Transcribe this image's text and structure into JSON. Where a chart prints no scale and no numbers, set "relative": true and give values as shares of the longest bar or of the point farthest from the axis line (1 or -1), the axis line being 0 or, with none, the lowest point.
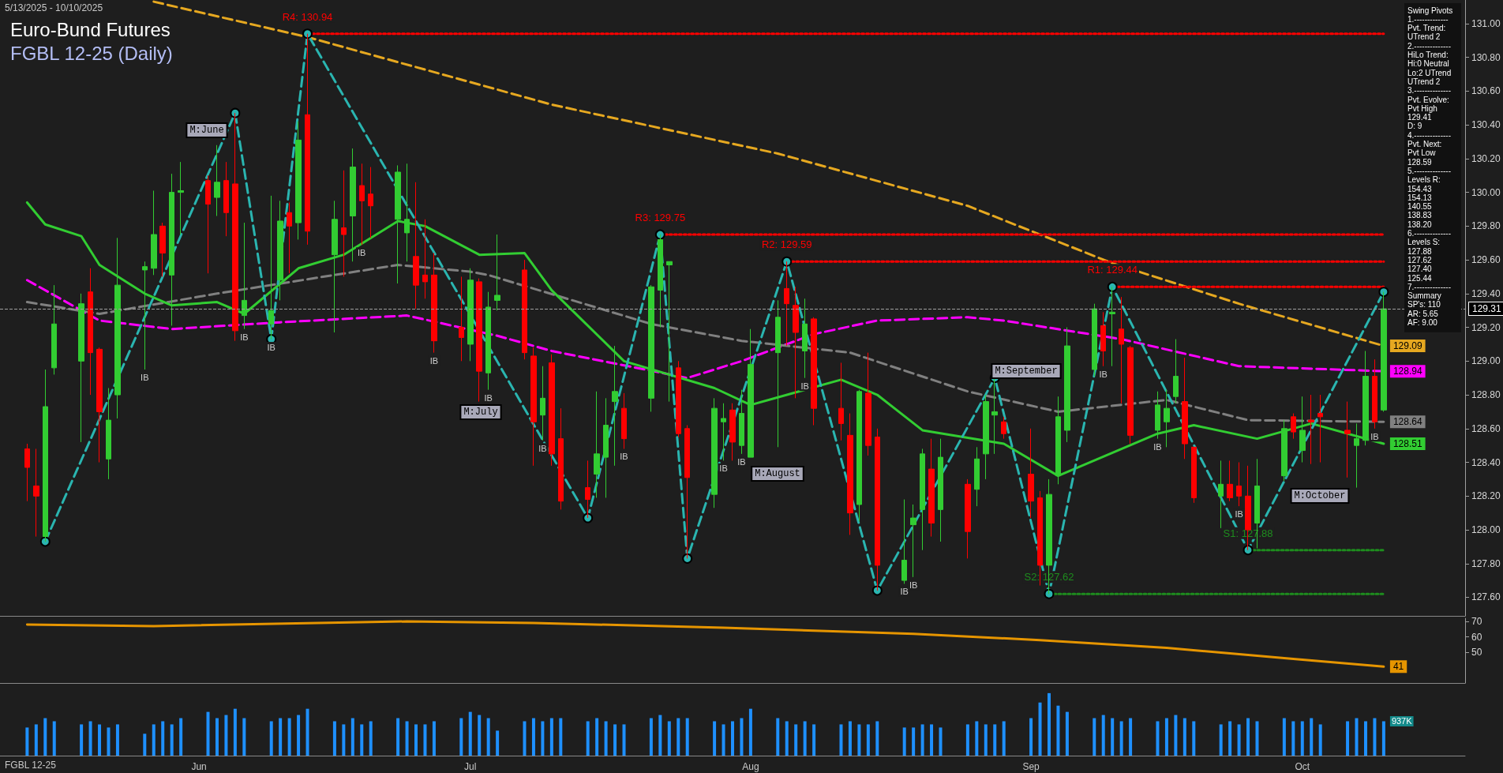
{
  "chart_data": [
    {
      "type": "candlestick",
      "title": "Euro-Bund Futures",
      "subtitle": "FGBL 12-25 (Daily)",
      "x": [
        "2025-05-13",
        "2025-05-14",
        "2025-05-15",
        "2025-05-16",
        "2025-05-19",
        "2025-05-20",
        "2025-05-21",
        "2025-05-22",
        "2025-05-23",
        "2025-05-26",
        "2025-05-27",
        "2025-05-28",
        "2025-05-29",
        "2025-05-30",
        "2025-06-02",
        "2025-06-03",
        "2025-06-04",
        "2025-06-05",
        "2025-06-06",
        "2025-06-09",
        "2025-06-10",
        "2025-06-11",
        "2025-06-12",
        "2025-06-13",
        "2025-06-16",
        "2025-06-17",
        "2025-06-18",
        "2025-06-19",
        "2025-06-20",
        "2025-06-23",
        "2025-06-24",
        "2025-06-25",
        "2025-06-26",
        "2025-06-27",
        "2025-06-30",
        "2025-07-01",
        "2025-07-02",
        "2025-07-03",
        "2025-07-04",
        "2025-07-07",
        "2025-07-08",
        "2025-07-09",
        "2025-07-10",
        "2025-07-11",
        "2025-07-14",
        "2025-07-15",
        "2025-07-16",
        "2025-07-17",
        "2025-07-18",
        "2025-07-21",
        "2025-07-22",
        "2025-07-23",
        "2025-07-24",
        "2025-07-25",
        "2025-07-28",
        "2025-07-29",
        "2025-07-30",
        "2025-07-31",
        "2025-08-01",
        "2025-08-04",
        "2025-08-05",
        "2025-08-06",
        "2025-08-07",
        "2025-08-08",
        "2025-08-11",
        "2025-08-12",
        "2025-08-13",
        "2025-08-14",
        "2025-08-15",
        "2025-08-18",
        "2025-08-19",
        "2025-08-20",
        "2025-08-21",
        "2025-08-22",
        "2025-08-25",
        "2025-08-26",
        "2025-08-27",
        "2025-08-28",
        "2025-08-29",
        "2025-09-01",
        "2025-09-02",
        "2025-09-03",
        "2025-09-04",
        "2025-09-05",
        "2025-09-08",
        "2025-09-09",
        "2025-09-10",
        "2025-09-11",
        "2025-09-12",
        "2025-09-15",
        "2025-09-16",
        "2025-09-17",
        "2025-09-18",
        "2025-09-19",
        "2025-09-22",
        "2025-09-23",
        "2025-09-24",
        "2025-09-25",
        "2025-09-26",
        "2025-09-29",
        "2025-09-30",
        "2025-10-01",
        "2025-10-02",
        "2025-10-03",
        "2025-10-06",
        "2025-10-07",
        "2025-10-08",
        "2025-10-09",
        "2025-10-10"
      ],
      "ohlc": [
        [
          128.48,
          128.51,
          128.17,
          128.37
        ],
        [
          128.26,
          128.48,
          127.96,
          128.2
        ],
        [
          127.96,
          128.95,
          127.93,
          128.73
        ],
        [
          128.96,
          129.45,
          128.92,
          129.22
        ],
        [
          129.0,
          129.4,
          128.52,
          129.34
        ],
        [
          129.41,
          129.55,
          128.8,
          129.05
        ],
        [
          129.07,
          129.08,
          128.4,
          128.7
        ],
        [
          128.42,
          128.84,
          128.3,
          128.65
        ],
        [
          128.8,
          129.73,
          128.66,
          129.45
        ],
        [
          129.54,
          129.59,
          128.95,
          129.56
        ],
        [
          129.55,
          130.01,
          129.51,
          129.75
        ],
        [
          129.8,
          129.82,
          129.5,
          129.64
        ],
        [
          129.51,
          130.11,
          129.21,
          130.0
        ],
        [
          130.0,
          130.18,
          129.75,
          130.01
        ],
        [
          130.07,
          130.1,
          129.52,
          129.93
        ],
        [
          129.97,
          130.28,
          129.86,
          130.06
        ],
        [
          130.07,
          130.18,
          129.74,
          129.88
        ],
        [
          130.05,
          130.47,
          129.12,
          129.18
        ],
        [
          129.27,
          129.82,
          129.19,
          129.36
        ],
        [
          129.22,
          129.98,
          129.13,
          129.3
        ],
        [
          129.48,
          129.95,
          129.36,
          129.83
        ],
        [
          129.88,
          129.94,
          129.52,
          129.8
        ],
        [
          129.82,
          130.42,
          129.72,
          130.31
        ],
        [
          130.46,
          130.94,
          129.69,
          129.77
        ],
        [
          129.63,
          129.95,
          129.17,
          129.84
        ],
        [
          129.79,
          130.13,
          129.5,
          129.75
        ],
        [
          129.86,
          130.26,
          129.59,
          130.15
        ],
        [
          130.04,
          130.17,
          129.69,
          129.95
        ],
        [
          129.99,
          130.15,
          129.73,
          129.92
        ],
        [
          129.84,
          130.16,
          129.46,
          130.12
        ],
        [
          129.76,
          130.17,
          129.59,
          129.84
        ],
        [
          129.62,
          130.06,
          129.31,
          129.45
        ],
        [
          129.51,
          129.84,
          129.37,
          129.47
        ],
        [
          129.51,
          129.64,
          129.05,
          129.12
        ],
        [
          129.2,
          129.5,
          129.0,
          129.14
        ],
        [
          129.1,
          129.55,
          129.0,
          129.48
        ],
        [
          129.47,
          129.49,
          128.76,
          128.94
        ],
        [
          128.93,
          129.41,
          128.83,
          129.32
        ],
        [
          129.36,
          129.75,
          129.3,
          129.39
        ],
        [
          129.54,
          129.6,
          129.01,
          129.05
        ],
        [
          129.03,
          129.08,
          128.38,
          128.64
        ],
        [
          128.68,
          128.97,
          128.53,
          128.78
        ],
        [
          128.99,
          129.04,
          128.38,
          128.45
        ],
        [
          128.54,
          128.72,
          128.12,
          128.17
        ],
        [
          128.25,
          128.41,
          128.07,
          128.18
        ],
        [
          128.33,
          128.82,
          128.19,
          128.45
        ],
        [
          128.43,
          128.78,
          128.19,
          128.62
        ],
        [
          128.76,
          129.09,
          128.38,
          128.82
        ],
        [
          128.72,
          128.81,
          128.48,
          128.54
        ],
        [
          128.78,
          129.45,
          128.7,
          129.44
        ],
        [
          129.42,
          129.75,
          129.2,
          129.72
        ],
        [
          129.57,
          129.59,
          128.76,
          129.59
        ],
        [
          128.96,
          129.0,
          128.55,
          128.57
        ],
        [
          128.6,
          128.62,
          127.83,
          128.31
        ],
        [
          128.21,
          128.78,
          128.13,
          128.72
        ],
        [
          128.64,
          128.75,
          128.41,
          128.66
        ],
        [
          128.71,
          128.75,
          128.41,
          128.52
        ],
        [
          128.5,
          128.83,
          128.45,
          128.69
        ],
        [
          128.43,
          129.19,
          128.43,
          128.98
        ],
        [
          129.05,
          129.36,
          128.49,
          129.26
        ],
        [
          129.43,
          129.59,
          129.09,
          129.34
        ],
        [
          129.33,
          129.44,
          128.78,
          129.17
        ],
        [
          129.06,
          129.37,
          128.9,
          129.22
        ],
        [
          129.25,
          129.26,
          128.62,
          128.72
        ],
        [
          128.72,
          128.99,
          128.53,
          128.63
        ],
        [
          128.56,
          128.69,
          127.97,
          128.1
        ],
        [
          128.15,
          128.83,
          128.05,
          128.82
        ],
        [
          128.81,
          129.05,
          128.44,
          128.5
        ],
        [
          128.55,
          128.6,
          127.64,
          127.79
        ],
        [
          127.7,
          128.18,
          127.68,
          127.82
        ],
        [
          128.03,
          128.15,
          127.72,
          128.07
        ],
        [
          128.12,
          128.48,
          127.88,
          128.45
        ],
        [
          128.36,
          128.54,
          127.96,
          128.04
        ],
        [
          128.12,
          128.54,
          127.93,
          128.43
        ],
        [
          128.27,
          128.3,
          127.83,
          127.99
        ],
        [
          128.24,
          128.49,
          128.14,
          128.42
        ],
        [
          128.45,
          128.8,
          128.3,
          128.76
        ],
        [
          128.68,
          128.9,
          128.45,
          128.7
        ],
        [
          128.64,
          128.67,
          128.54,
          128.57
        ],
        [
          128.33,
          128.6,
          128.07,
          128.17
        ],
        [
          128.19,
          128.23,
          127.67,
          127.79
        ],
        [
          127.79,
          128.3,
          127.62,
          128.21
        ],
        [
          128.32,
          128.79,
          128.27,
          128.67
        ],
        [
          128.59,
          129.2,
          128.52,
          129.09
        ],
        [
          128.95,
          129.34,
          128.91,
          129.31
        ],
        [
          129.21,
          129.29,
          128.97,
          129.06
        ],
        [
          129.28,
          129.44,
          128.97,
          129.29
        ],
        [
          129.19,
          129.38,
          128.75,
          129.1
        ],
        [
          129.08,
          129.09,
          128.51,
          128.56
        ],
        [
          128.59,
          128.82,
          128.54,
          128.74
        ],
        [
          128.64,
          128.83,
          128.49,
          128.72
        ],
        [
          128.79,
          129.13,
          128.75,
          128.91
        ],
        [
          128.76,
          129.02,
          128.42,
          128.51
        ],
        [
          128.49,
          128.49,
          128.16,
          128.19
        ],
        [
          128.2,
          128.41,
          128.01,
          128.27
        ],
        [
          128.27,
          128.41,
          128.17,
          128.19
        ],
        [
          128.26,
          128.4,
          128.14,
          128.2
        ],
        [
          128.2,
          128.38,
          127.88,
          128.0
        ],
        [
          128.04,
          128.42,
          127.89,
          128.26
        ],
        [
          128.32,
          128.65,
          128.29,
          128.6
        ],
        [
          128.67,
          128.69,
          128.54,
          128.58
        ],
        [
          128.47,
          128.79,
          128.4,
          128.59
        ],
        [
          128.65,
          128.8,
          128.39,
          128.64
        ],
        [
          128.69,
          128.8,
          128.4,
          128.67
        ],
        [
          128.59,
          128.76,
          128.31,
          128.57
        ],
        [
          128.5,
          128.63,
          128.25,
          128.54
        ],
        [
          128.53,
          129.06,
          128.5,
          128.91
        ],
        [
          128.91,
          129.01,
          128.6,
          128.64
        ],
        [
          128.71,
          129.41,
          128.7,
          129.31
        ]
      ],
      "colors": [
        "#ff0000",
        "#ff0000",
        "#32cd32",
        "#32cd32",
        "#32cd32",
        "#ff0000",
        "#ff0000",
        "#32cd32",
        "#32cd32",
        "#32cd32",
        "#32cd32",
        "#ff0000",
        "#32cd32",
        "#32cd32",
        "#ff0000",
        "#32cd32",
        "#ff0000",
        "#ff0000",
        "#32cd32",
        "#32cd32",
        "#32cd32",
        "#ff0000",
        "#32cd32",
        "#ff0000",
        "#32cd32",
        "#ff0000",
        "#32cd32",
        "#ff0000",
        "#ff0000",
        "#32cd32",
        "#32cd32",
        "#ff0000",
        "#ff0000",
        "#ff0000",
        "#ff0000",
        "#32cd32",
        "#ff0000",
        "#32cd32",
        "#32cd32",
        "#ff0000",
        "#ff0000",
        "#32cd32",
        "#ff0000",
        "#ff0000",
        "#ff0000",
        "#32cd32",
        "#32cd32",
        "#32cd32",
        "#ff0000",
        "#32cd32",
        "#32cd32",
        "#32cd32",
        "#ff0000",
        "#ff0000",
        "#32cd32",
        "#32cd32",
        "#ff0000",
        "#32cd32",
        "#32cd32",
        "#32cd32",
        "#ff0000",
        "#ff0000",
        "#32cd32",
        "#ff0000",
        "#ff0000",
        "#ff0000",
        "#32cd32",
        "#ff0000",
        "#ff0000",
        "#32cd32",
        "#32cd32",
        "#32cd32",
        "#ff0000",
        "#32cd32",
        "#ff0000",
        "#32cd32",
        "#32cd32",
        "#32cd32",
        "#ff0000",
        "#ff0000",
        "#ff0000",
        "#32cd32",
        "#32cd32",
        "#32cd32",
        "#32cd32",
        "#ff0000",
        "#32cd32",
        "#ff0000",
        "#ff0000",
        "#32cd32",
        "#32cd32",
        "#32cd32",
        "#ff0000",
        "#ff0000",
        "#32cd32",
        "#ff0000",
        "#ff0000",
        "#ff0000",
        "#32cd32",
        "#32cd32",
        "#ff0000",
        "#32cd32",
        "#ff0000",
        "#ff0000",
        "#ff0000",
        "#32cd32",
        "#32cd32",
        "#ff0000",
        "#32cd32"
      ],
      "series": [
        {
          "type": "line",
          "color": "#e6a820",
          "line_style": "dashed",
          "marker": "none",
          "x": [
            "2025-05-27",
            "2025-06-13",
            "2025-07-10",
            "2025-08-04",
            "2025-08-25",
            "2025-09-10",
            "2025-09-24",
            "2025-10-10"
          ],
          "values": [
            131.13,
            130.92,
            130.52,
            130.23,
            129.92,
            129.58,
            129.34,
            129.09
          ],
          "value_labels": [
            null,
            null,
            null,
            null,
            null,
            null,
            null,
            "129.09"
          ]
        },
        {
          "type": "line",
          "color": "#ff00ff",
          "line_style": "dashed",
          "marker": "none",
          "x": [
            "2025-05-13",
            "2025-05-21",
            "2025-05-29",
            "2025-06-10",
            "2025-06-24",
            "2025-07-04",
            "2025-07-10",
            "2025-07-25",
            "2025-07-31",
            "2025-08-08",
            "2025-08-15",
            "2025-08-25",
            "2025-08-29",
            "2025-09-11",
            "2025-09-24",
            "2025-10-10"
          ],
          "values": [
            129.48,
            129.24,
            129.19,
            129.23,
            129.27,
            129.15,
            129.06,
            128.9,
            129.0,
            129.16,
            129.24,
            129.26,
            129.24,
            129.13,
            128.97,
            128.94
          ],
          "value_labels": [
            null,
            null,
            null,
            null,
            null,
            null,
            null,
            null,
            null,
            null,
            null,
            null,
            null,
            null,
            null,
            "128.94"
          ]
        },
        {
          "type": "line",
          "color": "#808080",
          "line_style": "dashed",
          "marker": "none",
          "x": [
            "2025-05-13",
            "2025-05-21",
            "2025-06-03",
            "2025-06-23",
            "2025-07-01",
            "2025-07-03",
            "2025-07-21",
            "2025-07-31",
            "2025-08-12",
            "2025-08-25",
            "2025-09-04",
            "2025-09-16",
            "2025-09-25",
            "2025-10-10"
          ],
          "values": [
            129.35,
            129.28,
            129.4,
            129.57,
            129.53,
            129.51,
            129.22,
            129.12,
            129.05,
            128.82,
            128.7,
            128.77,
            128.65,
            128.64
          ],
          "value_labels": [
            null,
            null,
            null,
            null,
            null,
            null,
            null,
            null,
            null,
            null,
            null,
            null,
            null,
            "128.64"
          ]
        },
        {
          "type": "line",
          "color": "#32cd32",
          "line_style": "solid",
          "marker": "none",
          "x": [
            "2025-05-13",
            "2025-05-15",
            "2025-05-19",
            "2025-05-21",
            "2025-05-26",
            "2025-05-29",
            "2025-06-03",
            "2025-06-06",
            "2025-06-12",
            "2025-06-17",
            "2025-06-23",
            "2025-06-26",
            "2025-07-02",
            "2025-07-07",
            "2025-07-10",
            "2025-07-18",
            "2025-07-28",
            "2025-08-01",
            "2025-08-11",
            "2025-08-15",
            "2025-08-20",
            "2025-08-29",
            "2025-09-04",
            "2025-09-15",
            "2025-09-19",
            "2025-09-26",
            "2025-10-02",
            "2025-10-10"
          ],
          "values": [
            129.94,
            129.81,
            129.74,
            129.57,
            129.4,
            129.33,
            129.35,
            129.28,
            129.55,
            129.63,
            129.83,
            129.8,
            129.63,
            129.64,
            129.42,
            129.0,
            128.84,
            128.74,
            128.89,
            128.8,
            128.59,
            128.51,
            128.32,
            128.57,
            128.62,
            128.54,
            128.63,
            128.51
          ],
          "value_labels": [
            null,
            null,
            null,
            null,
            null,
            null,
            null,
            null,
            null,
            null,
            null,
            null,
            null,
            null,
            null,
            null,
            null,
            null,
            null,
            null,
            null,
            null,
            null,
            null,
            null,
            null,
            null,
            "128.51"
          ]
        },
        {
          "type": "line",
          "color": "#2ab5b0",
          "line_style": "dashed",
          "marker": "circle",
          "x": [
            "2025-05-15",
            "2025-06-05",
            "2025-06-09",
            "2025-06-13",
            "2025-07-14",
            "2025-07-22",
            "2025-07-25",
            "2025-08-05",
            "2025-08-15",
            "2025-08-28",
            "2025-09-03",
            "2025-09-10",
            "2025-09-25",
            "2025-10-10"
          ],
          "values": [
            127.93,
            130.47,
            129.13,
            130.94,
            128.07,
            129.75,
            127.83,
            129.59,
            127.64,
            128.9,
            127.62,
            129.44,
            127.88,
            129.41
          ]
        },
        {
          "type": "line",
          "color": "#ff0000",
          "line_style": "dotted",
          "marker": "none",
          "x": [
            "2025-06-13",
            "2025-10-10"
          ],
          "values": [
            130.94,
            130.94
          ],
          "value_labels": [
            "R4: 130.94",
            null
          ]
        },
        {
          "type": "line",
          "color": "#ff0000",
          "line_style": "dotted",
          "marker": "none",
          "x": [
            "2025-07-22",
            "2025-10-10"
          ],
          "values": [
            129.75,
            129.75
          ],
          "value_labels": [
            "R3: 129.75",
            null
          ]
        },
        {
          "type": "line",
          "color": "#ff0000",
          "line_style": "dotted",
          "marker": "none",
          "x": [
            "2025-08-05",
            "2025-10-10"
          ],
          "values": [
            129.59,
            129.59
          ],
          "value_labels": [
            "R2: 129.59",
            null
          ]
        },
        {
          "type": "line",
          "color": "#ff0000",
          "line_style": "dotted",
          "marker": "none",
          "x": [
            "2025-09-10",
            "2025-10-10"
          ],
          "values": [
            129.44,
            129.44
          ],
          "value_labels": [
            "R1: 129.44",
            null
          ]
        },
        {
          "type": "line",
          "color": "#1e8c1e",
          "line_style": "dotted",
          "marker": "none",
          "x": [
            "2025-09-25",
            "2025-10-10"
          ],
          "values": [
            127.88,
            127.88
          ],
          "value_labels": [
            "S1: 127.88",
            null
          ]
        },
        {
          "type": "line",
          "color": "#1e8c1e",
          "line_style": "dotted",
          "marker": "none",
          "x": [
            "2025-09-03",
            "2025-10-10"
          ],
          "values": [
            127.62,
            127.62
          ],
          "value_labels": [
            "S2: 127.62",
            null
          ]
        }
      ],
      "ref_lines": [
        {
          "axis": "y",
          "value": 129.31,
          "label": "129.31",
          "color": "#a0a0a0",
          "line_style": "dashed"
        }
      ],
      "xlim": [
        "2025-05-10",
        "2025-10-19"
      ],
      "ylim": [
        127.49,
        131.14
      ],
      "yticks": [
        {
          "value": 127.6,
          "label": "127.60"
        },
        {
          "value": 127.8,
          "label": "127.80"
        },
        {
          "value": 128,
          "label": "128.00"
        },
        {
          "value": 128.2,
          "label": "128.20"
        },
        {
          "value": 128.4,
          "label": "128.40"
        },
        {
          "value": 128.6,
          "label": "128.60"
        },
        {
          "value": 128.8,
          "label": "128.80"
        },
        {
          "value": 129,
          "label": "129.00"
        },
        {
          "value": 129.2,
          "label": "129.20"
        },
        {
          "value": 129.4,
          "label": "129.40"
        },
        {
          "value": 129.6,
          "label": "129.60"
        },
        {
          "value": 129.8,
          "label": "129.80"
        },
        {
          "value": 130,
          "label": "130.00"
        },
        {
          "value": 130.2,
          "label": "130.20"
        },
        {
          "value": 130.4,
          "label": "130.40"
        },
        {
          "value": 130.6,
          "label": "130.60"
        },
        {
          "value": 130.8,
          "label": "130.80"
        },
        {
          "value": 131,
          "label": "131.00"
        }
      ],
      "tick_labels": "y",
      "annotations": [
        "5/13/2025 - 10/10/2025",
        "Swing Pivots",
        "1.-------------",
        "Pvt. Trend:",
        "UTrend 2",
        "2.--------------",
        "HiLo Trend:",
        "Hi:0 Neutral",
        "Lo:2 UTrend",
        "UTrend 2",
        "3.--------------",
        "Pvt. Evolve:",
        "Pvt High",
        "129.41",
        "D: 9",
        "4.--------------",
        "Pvt. Next:",
        "Pvt Low",
        "128.59",
        "5.--------------",
        "Levels R:",
        "154.43",
        "154.13",
        "140.55",
        "138.83",
        "138.20",
        "6.--------------",
        "Levels S:",
        "127.88",
        "127.62",
        "127.40",
        "125.44",
        "7.--------------",
        "Summary",
        "SP's: 110",
        "AR: 5.65",
        "AF: 9.00",
        "M:June",
        "M:July",
        "M:August",
        "M:September",
        "M:October",
        {
          "text": "IB",
          "x": "2025-05-26",
          "y": 128.95
        },
        {
          "text": "IB",
          "x": "2025-06-06",
          "y": 129.19
        },
        {
          "text": "IB",
          "x": "2025-06-09",
          "y": 129.13
        },
        {
          "text": "IB",
          "x": "2025-06-19",
          "y": 129.69
        },
        {
          "text": "IB",
          "x": "2025-06-27",
          "y": 129.05
        },
        {
          "text": "IB",
          "x": "2025-07-03",
          "y": 128.83
        },
        {
          "text": "IB",
          "x": "2025-07-09",
          "y": 128.53
        },
        {
          "text": "IB",
          "x": "2025-07-18",
          "y": 128.48
        },
        {
          "text": "IB",
          "x": "2025-07-29",
          "y": 128.41
        },
        {
          "text": "IB",
          "x": "2025-07-31",
          "y": 128.45
        },
        {
          "text": "IB",
          "x": "2025-08-07",
          "y": 128.9
        },
        {
          "text": "IB",
          "x": "2025-08-18",
          "y": 127.68
        },
        {
          "text": "IB",
          "x": "2025-08-19",
          "y": 127.72
        },
        {
          "text": "IB",
          "x": "2025-09-09",
          "y": 128.97
        },
        {
          "text": "IB",
          "x": "2025-09-15",
          "y": 128.54
        },
        {
          "text": "IB",
          "x": "2025-09-24",
          "y": 128.14
        },
        {
          "text": "IB",
          "x": "2025-10-09",
          "y": 128.6
        }
      ]
    },
    {
      "type": "line",
      "color": "#e69500",
      "x": [
        "2025-05-13",
        "2025-05-27",
        "2025-06-24",
        "2025-07-08",
        "2025-07-29",
        "2025-08-19",
        "2025-09-02",
        "2025-09-16",
        "2025-09-30",
        "2025-10-10"
      ],
      "values": [
        68,
        67,
        70,
        69,
        66,
        62,
        58,
        53,
        46,
        41
      ],
      "value_labels": [
        null,
        null,
        null,
        null,
        null,
        null,
        null,
        null,
        null,
        "41"
      ],
      "xlim": [
        "2025-05-10",
        "2025-10-19"
      ],
      "ylim": [
        30.5,
        72
      ],
      "yticks": [
        50,
        60,
        70
      ],
      "tick_labels": "y"
    },
    {
      "type": "bar",
      "relative": true,
      "color": "#1e90ff",
      "x": [
        "2025-05-13",
        "2025-05-14",
        "2025-05-15",
        "2025-05-16",
        "2025-05-19",
        "2025-05-20",
        "2025-05-21",
        "2025-05-22",
        "2025-05-23",
        "2025-05-26",
        "2025-05-27",
        "2025-05-28",
        "2025-05-29",
        "2025-05-30",
        "2025-06-02",
        "2025-06-03",
        "2025-06-04",
        "2025-06-05",
        "2025-06-06",
        "2025-06-09",
        "2025-06-10",
        "2025-06-11",
        "2025-06-12",
        "2025-06-13",
        "2025-06-16",
        "2025-06-17",
        "2025-06-18",
        "2025-06-19",
        "2025-06-20",
        "2025-06-23",
        "2025-06-24",
        "2025-06-25",
        "2025-06-26",
        "2025-06-27",
        "2025-06-30",
        "2025-07-01",
        "2025-07-02",
        "2025-07-03",
        "2025-07-04",
        "2025-07-07",
        "2025-07-08",
        "2025-07-09",
        "2025-07-10",
        "2025-07-11",
        "2025-07-14",
        "2025-07-15",
        "2025-07-16",
        "2025-07-17",
        "2025-07-18",
        "2025-07-21",
        "2025-07-22",
        "2025-07-23",
        "2025-07-24",
        "2025-07-25",
        "2025-07-28",
        "2025-07-29",
        "2025-07-30",
        "2025-07-31",
        "2025-08-01",
        "2025-08-04",
        "2025-08-05",
        "2025-08-06",
        "2025-08-07",
        "2025-08-08",
        "2025-08-11",
        "2025-08-12",
        "2025-08-13",
        "2025-08-14",
        "2025-08-15",
        "2025-08-18",
        "2025-08-19",
        "2025-08-20",
        "2025-08-21",
        "2025-08-22",
        "2025-08-25",
        "2025-08-26",
        "2025-08-27",
        "2025-08-28",
        "2025-08-29",
        "2025-09-01",
        "2025-09-02",
        "2025-09-03",
        "2025-09-04",
        "2025-09-05",
        "2025-09-08",
        "2025-09-09",
        "2025-09-10",
        "2025-09-11",
        "2025-09-12",
        "2025-09-15",
        "2025-09-16",
        "2025-09-17",
        "2025-09-18",
        "2025-09-19",
        "2025-09-22",
        "2025-09-23",
        "2025-09-24",
        "2025-09-25",
        "2025-09-26",
        "2025-09-29",
        "2025-09-30",
        "2025-10-01",
        "2025-10-02",
        "2025-10-03",
        "2025-10-06",
        "2025-10-07",
        "2025-10-08",
        "2025-10-09",
        "2025-10-10"
      ],
      "values": [
        0.45,
        0.5,
        0.6,
        0.55,
        0.5,
        0.55,
        0.5,
        0.45,
        0.5,
        0.35,
        0.5,
        0.55,
        0.5,
        0.6,
        0.7,
        0.6,
        0.65,
        0.75,
        0.6,
        0.55,
        0.6,
        0.6,
        0.65,
        0.75,
        0.55,
        0.5,
        0.6,
        0.5,
        0.55,
        0.6,
        0.55,
        0.5,
        0.5,
        0.55,
        0.6,
        0.7,
        0.65,
        0.6,
        0.4,
        0.55,
        0.6,
        0.55,
        0.6,
        0.6,
        0.55,
        0.6,
        0.55,
        0.5,
        0.5,
        0.6,
        0.65,
        0.55,
        0.6,
        0.6,
        0.55,
        0.5,
        0.55,
        0.6,
        0.75,
        0.6,
        0.55,
        0.5,
        0.55,
        0.5,
        0.5,
        0.55,
        0.5,
        0.5,
        0.55,
        0.45,
        0.45,
        0.5,
        0.5,
        0.45,
        0.5,
        0.55,
        0.5,
        0.5,
        0.55,
        0.6,
        0.85,
        1.0,
        0.8,
        0.7,
        0.6,
        0.65,
        0.6,
        0.55,
        0.6,
        0.55,
        0.6,
        0.65,
        0.6,
        0.55,
        0.5,
        0.55,
        0.5,
        0.6,
        0.55,
        0.6,
        0.55,
        0.55,
        0.6,
        0.5,
        0.55,
        0.6,
        0.55,
        0.6,
        0.55
      ],
      "xlim": [
        "2025-05-10",
        "2025-10-19"
      ],
      "xticks": [
        {
          "value": "2025-06-01",
          "label": "Jun"
        },
        {
          "value": "2025-07-01",
          "label": "Jul"
        },
        {
          "value": "2025-08-01",
          "label": "Aug"
        },
        {
          "value": "2025-09-01",
          "label": "Sep"
        },
        {
          "value": "2025-10-01",
          "label": "Oct"
        }
      ],
      "tick_labels": "x",
      "annotations": [
        "FGBL 12-25",
        {
          "text": "937K",
          "x": "2025-10-10",
          "y": 0.55
        }
      ]
    }
  ]
}
